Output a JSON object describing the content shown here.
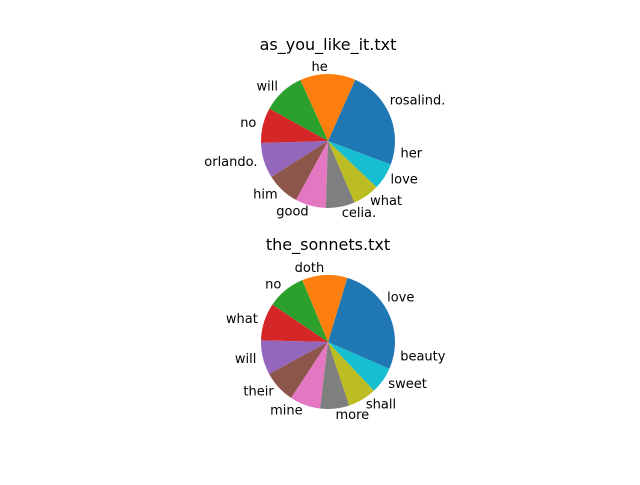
{
  "chart_data": [
    {
      "type": "pie",
      "title": "as_you_like_it.txt",
      "start_angle_deg": 0,
      "counterclockwise": true,
      "categories": [
        "rosalind.",
        "he",
        "will",
        "no",
        "orlando.",
        "him",
        "good",
        "celia.",
        "what",
        "love",
        "her"
      ],
      "values": [
        97,
        71,
        54,
        45,
        45,
        43,
        39,
        37,
        34,
        34,
        30
      ],
      "colors": [
        "#1f77b4",
        "#ff7f0e",
        "#2ca02c",
        "#d62728",
        "#9467bd",
        "#8c564b",
        "#e377c2",
        "#7f7f7f",
        "#bcbd22",
        "#17becf",
        "#1f77b4"
      ]
    },
    {
      "type": "pie",
      "title": "the_sonnets.txt",
      "start_angle_deg": 0,
      "counterclockwise": true,
      "categories": [
        "love",
        "doth",
        "no",
        "what",
        "will",
        "their",
        "mine",
        "more",
        "shall",
        "sweet",
        "beauty"
      ],
      "values": [
        162,
        87,
        74,
        72,
        66,
        62,
        59,
        56,
        55,
        51,
        52
      ],
      "colors": [
        "#1f77b4",
        "#ff7f0e",
        "#2ca02c",
        "#d62728",
        "#9467bd",
        "#8c564b",
        "#e377c2",
        "#7f7f7f",
        "#bcbd22",
        "#17becf",
        "#1f77b4"
      ]
    }
  ]
}
